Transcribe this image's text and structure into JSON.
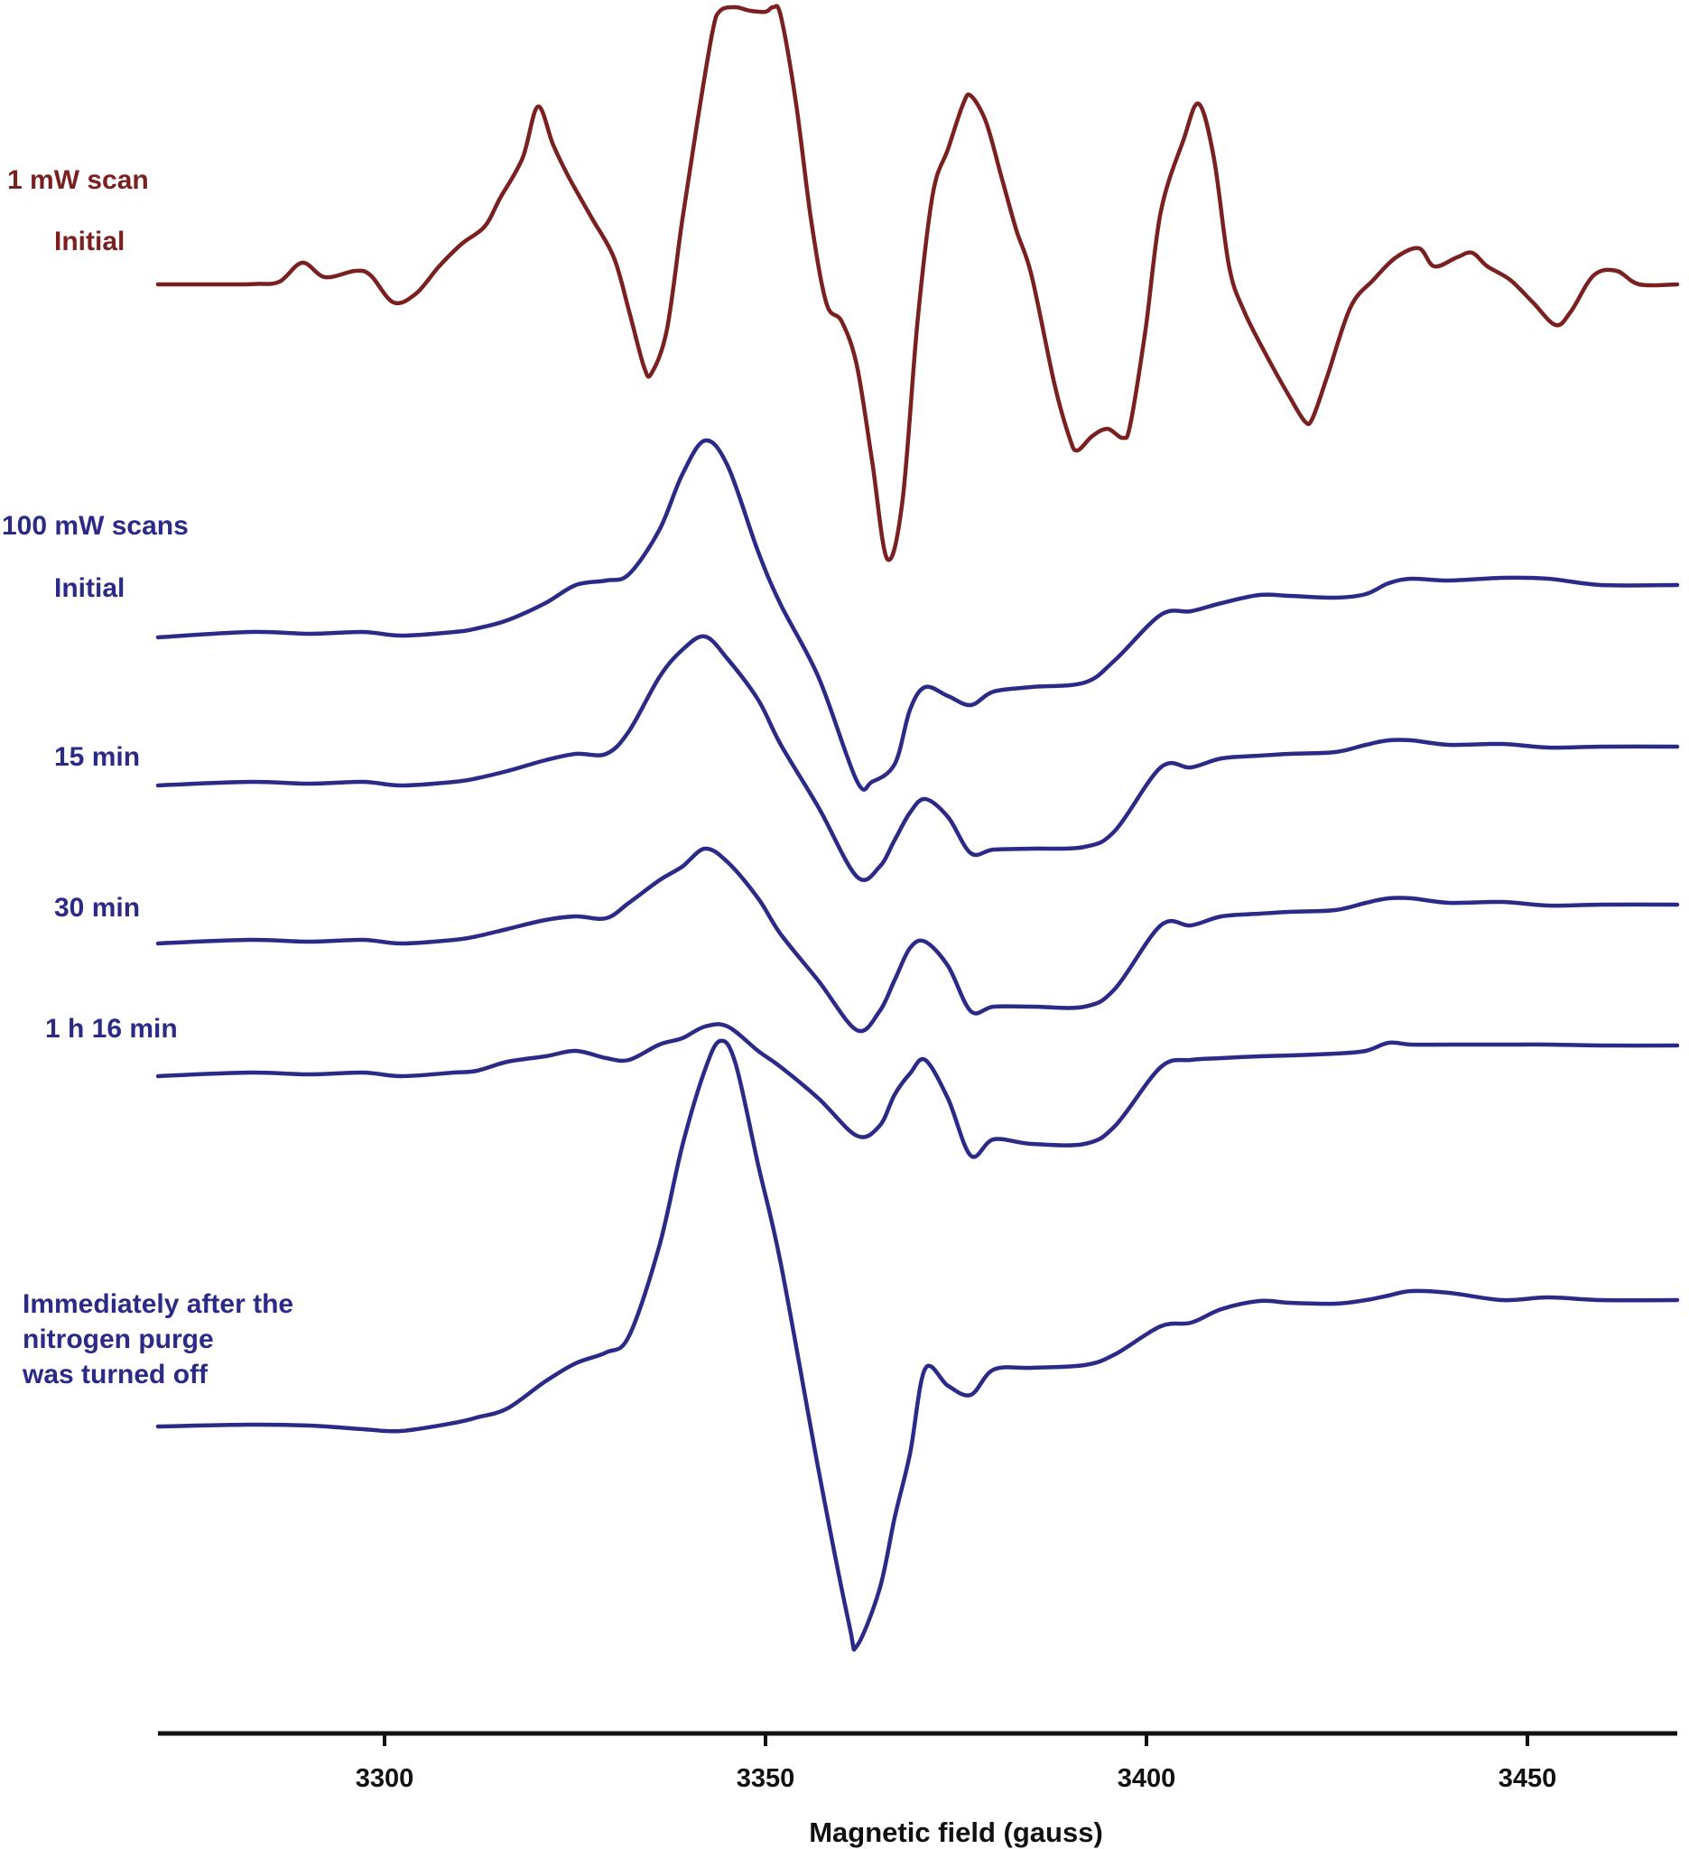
{
  "chart_data": {
    "type": "line",
    "title": "",
    "xlabel": "Magnetic field (gauss)",
    "ylabel": "",
    "xlim": [
      3270,
      3470
    ],
    "xticks": [
      3300,
      3350,
      3400,
      3450
    ],
    "grid": false,
    "colors": {
      "scan_1mw": "#7a2020",
      "scan_100mw": "#2b2a86",
      "axis": "#111111"
    },
    "series": [
      {
        "name": "1 mW scan Initial",
        "group_label": "1 mW scan",
        "label": "Initial",
        "color": "#7a2020",
        "points": [
          [
            3270,
            0
          ],
          [
            3280,
            0
          ],
          [
            3283,
            -0.5
          ],
          [
            3286,
            -3
          ],
          [
            3289,
            -24
          ],
          [
            3292,
            -8
          ],
          [
            3296,
            -15
          ],
          [
            3298,
            -10
          ],
          [
            3301,
            20
          ],
          [
            3304,
            10
          ],
          [
            3307,
            -20
          ],
          [
            3310,
            -45
          ],
          [
            3313,
            -64
          ],
          [
            3315,
            -95
          ],
          [
            3318,
            -140
          ],
          [
            3320,
            -197
          ],
          [
            3322,
            -155
          ],
          [
            3324,
            -120
          ],
          [
            3327,
            -75
          ],
          [
            3330,
            -30
          ],
          [
            3332,
            29
          ],
          [
            3334,
            92
          ],
          [
            3335,
            98
          ],
          [
            3337,
            50
          ],
          [
            3339,
            -70
          ],
          [
            3341,
            -180
          ],
          [
            3343,
            -280
          ],
          [
            3344,
            -303
          ],
          [
            3346,
            -307
          ],
          [
            3348,
            -303
          ],
          [
            3350,
            -302
          ],
          [
            3351,
            -307
          ],
          [
            3352,
            -297
          ],
          [
            3354,
            -200
          ],
          [
            3356,
            -70
          ],
          [
            3358,
            21
          ],
          [
            3360,
            41
          ],
          [
            3362,
            90
          ],
          [
            3364,
            195
          ],
          [
            3366,
            304
          ],
          [
            3368,
            240
          ],
          [
            3370,
            40
          ],
          [
            3372,
            -100
          ],
          [
            3374,
            -150
          ],
          [
            3376,
            -200
          ],
          [
            3377,
            -209
          ],
          [
            3379,
            -180
          ],
          [
            3381,
            -120
          ],
          [
            3383,
            -60
          ],
          [
            3385,
            -10
          ],
          [
            3388,
            110
          ],
          [
            3390,
            170
          ],
          [
            3391,
            184
          ],
          [
            3393,
            168
          ],
          [
            3395,
            160
          ],
          [
            3397,
            170
          ],
          [
            3398,
            155
          ],
          [
            3400,
            50
          ],
          [
            3402,
            -80
          ],
          [
            3405,
            -160
          ],
          [
            3407,
            -200
          ],
          [
            3409,
            -140
          ],
          [
            3411,
            -20
          ],
          [
            3413,
            30
          ],
          [
            3416,
            80
          ],
          [
            3419,
            125
          ],
          [
            3421,
            152
          ],
          [
            3422,
            148
          ],
          [
            3424,
            100
          ],
          [
            3427,
            25
          ],
          [
            3430,
            -5
          ],
          [
            3433,
            -30
          ],
          [
            3436,
            -40
          ],
          [
            3438,
            -20
          ],
          [
            3441,
            -30
          ],
          [
            3443,
            -35
          ],
          [
            3445,
            -20
          ],
          [
            3448,
            -5
          ],
          [
            3451,
            20
          ],
          [
            3454,
            45
          ],
          [
            3456,
            30
          ],
          [
            3459,
            -10
          ],
          [
            3462,
            -15
          ],
          [
            3465,
            0
          ],
          [
            3470,
            0
          ]
        ]
      },
      {
        "name": "100 mW scans Initial",
        "group_label": "100 mW scans",
        "label": "Initial",
        "color": "#2b2a86",
        "points": [
          [
            3270,
            0
          ],
          [
            3282,
            -6
          ],
          [
            3290,
            -4
          ],
          [
            3297,
            -6
          ],
          [
            3302,
            -2
          ],
          [
            3309,
            -6
          ],
          [
            3312,
            -10
          ],
          [
            3316,
            -19
          ],
          [
            3321,
            -38
          ],
          [
            3325,
            -58
          ],
          [
            3329,
            -63
          ],
          [
            3332,
            -70
          ],
          [
            3336,
            -119
          ],
          [
            3339,
            -180
          ],
          [
            3342,
            -218
          ],
          [
            3345,
            -190
          ],
          [
            3349,
            -95
          ],
          [
            3352,
            -36
          ],
          [
            3357,
            45
          ],
          [
            3362,
            159
          ],
          [
            3364,
            160
          ],
          [
            3367,
            140
          ],
          [
            3369,
            80
          ],
          [
            3371,
            55
          ],
          [
            3374,
            65
          ],
          [
            3377,
            75
          ],
          [
            3380,
            60
          ],
          [
            3385,
            55
          ],
          [
            3392,
            50
          ],
          [
            3396,
            25
          ],
          [
            3402,
            -25
          ],
          [
            3406,
            -29
          ],
          [
            3410,
            -38
          ],
          [
            3415,
            -47
          ],
          [
            3419,
            -46
          ],
          [
            3425,
            -44
          ],
          [
            3429,
            -48
          ],
          [
            3432,
            -60
          ],
          [
            3435,
            -65
          ],
          [
            3440,
            -63
          ],
          [
            3447,
            -66
          ],
          [
            3453,
            -65
          ],
          [
            3460,
            -58
          ],
          [
            3470,
            -58
          ]
        ]
      },
      {
        "name": "100 mW scans 15 min",
        "label": "15 min",
        "color": "#2b2a86",
        "points": [
          [
            3270,
            0
          ],
          [
            3282,
            -4
          ],
          [
            3290,
            -2
          ],
          [
            3297,
            -4
          ],
          [
            3302,
            0
          ],
          [
            3309,
            -4
          ],
          [
            3312,
            -8
          ],
          [
            3316,
            -16
          ],
          [
            3321,
            -28
          ],
          [
            3325,
            -35
          ],
          [
            3329,
            -35
          ],
          [
            3332,
            -60
          ],
          [
            3336,
            -120
          ],
          [
            3339,
            -150
          ],
          [
            3342,
            -165
          ],
          [
            3345,
            -140
          ],
          [
            3349,
            -95
          ],
          [
            3352,
            -45
          ],
          [
            3357,
            25
          ],
          [
            3362,
            101
          ],
          [
            3365,
            90
          ],
          [
            3367,
            60
          ],
          [
            3369,
            30
          ],
          [
            3371,
            15
          ],
          [
            3374,
            35
          ],
          [
            3377,
            75
          ],
          [
            3380,
            71
          ],
          [
            3385,
            70
          ],
          [
            3392,
            68
          ],
          [
            3396,
            50
          ],
          [
            3402,
            -20
          ],
          [
            3406,
            -20
          ],
          [
            3410,
            -30
          ],
          [
            3415,
            -33
          ],
          [
            3419,
            -35
          ],
          [
            3425,
            -37
          ],
          [
            3429,
            -45
          ],
          [
            3432,
            -50
          ],
          [
            3435,
            -50
          ],
          [
            3440,
            -45
          ],
          [
            3447,
            -46
          ],
          [
            3453,
            -42
          ],
          [
            3460,
            -43
          ],
          [
            3470,
            -43
          ]
        ]
      },
      {
        "name": "100 mW scans 30 min",
        "label": "30 min",
        "color": "#2b2a86",
        "points": [
          [
            3270,
            0
          ],
          [
            3282,
            -4
          ],
          [
            3290,
            -2
          ],
          [
            3297,
            -4
          ],
          [
            3302,
            0
          ],
          [
            3309,
            -4
          ],
          [
            3312,
            -8
          ],
          [
            3316,
            -16
          ],
          [
            3321,
            -26
          ],
          [
            3325,
            -30
          ],
          [
            3329,
            -28
          ],
          [
            3332,
            -45
          ],
          [
            3336,
            -70
          ],
          [
            3339,
            -85
          ],
          [
            3342,
            -105
          ],
          [
            3345,
            -90
          ],
          [
            3349,
            -50
          ],
          [
            3352,
            -10
          ],
          [
            3357,
            42
          ],
          [
            3362,
            96
          ],
          [
            3365,
            75
          ],
          [
            3367,
            40
          ],
          [
            3369,
            5
          ],
          [
            3371,
            -2
          ],
          [
            3374,
            25
          ],
          [
            3377,
            75
          ],
          [
            3380,
            70
          ],
          [
            3385,
            70
          ],
          [
            3392,
            70
          ],
          [
            3396,
            50
          ],
          [
            3402,
            -20
          ],
          [
            3406,
            -20
          ],
          [
            3410,
            -30
          ],
          [
            3415,
            -33
          ],
          [
            3419,
            -35
          ],
          [
            3425,
            -37
          ],
          [
            3429,
            -45
          ],
          [
            3432,
            -50
          ],
          [
            3435,
            -50
          ],
          [
            3440,
            -45
          ],
          [
            3447,
            -46
          ],
          [
            3453,
            -42
          ],
          [
            3460,
            -43
          ],
          [
            3470,
            -43
          ]
        ]
      },
      {
        "name": "100 mW scans 1 h 16 min",
        "label": "1 h 16 min",
        "color": "#2b2a86",
        "points": [
          [
            3270,
            0
          ],
          [
            3282,
            -4
          ],
          [
            3290,
            -2
          ],
          [
            3297,
            -4
          ],
          [
            3302,
            0
          ],
          [
            3309,
            -4
          ],
          [
            3312,
            -6
          ],
          [
            3316,
            -16
          ],
          [
            3321,
            -22
          ],
          [
            3325,
            -28
          ],
          [
            3329,
            -20
          ],
          [
            3332,
            -18
          ],
          [
            3336,
            -35
          ],
          [
            3339,
            -42
          ],
          [
            3342,
            -55
          ],
          [
            3345,
            -55
          ],
          [
            3349,
            -28
          ],
          [
            3352,
            -10
          ],
          [
            3357,
            25
          ],
          [
            3362,
            66
          ],
          [
            3365,
            55
          ],
          [
            3367,
            20
          ],
          [
            3369,
            -3
          ],
          [
            3371,
            -18
          ],
          [
            3374,
            25
          ],
          [
            3377,
            88
          ],
          [
            3380,
            70
          ],
          [
            3385,
            75
          ],
          [
            3392,
            75
          ],
          [
            3396,
            55
          ],
          [
            3402,
            -10
          ],
          [
            3406,
            -18
          ],
          [
            3410,
            -20
          ],
          [
            3415,
            -22
          ],
          [
            3419,
            -23
          ],
          [
            3425,
            -25
          ],
          [
            3429,
            -28
          ],
          [
            3432,
            -37
          ],
          [
            3435,
            -35
          ],
          [
            3440,
            -35
          ],
          [
            3447,
            -35
          ],
          [
            3453,
            -35
          ],
          [
            3460,
            -34
          ],
          [
            3470,
            -34
          ]
        ]
      },
      {
        "name": "Immediately after the nitrogen purge was turned off",
        "label": "Immediately after the\nnitrogen purge\nwas turned off",
        "color": "#2b2a86",
        "points": [
          [
            3270,
            0
          ],
          [
            3282,
            -2
          ],
          [
            3290,
            -1
          ],
          [
            3297,
            3
          ],
          [
            3302,
            5
          ],
          [
            3309,
            -4
          ],
          [
            3312,
            -10
          ],
          [
            3316,
            -20
          ],
          [
            3321,
            -50
          ],
          [
            3325,
            -70
          ],
          [
            3329,
            -82
          ],
          [
            3332,
            -100
          ],
          [
            3336,
            -200
          ],
          [
            3339,
            -310
          ],
          [
            3342,
            -395
          ],
          [
            3344,
            -427
          ],
          [
            3346,
            -403
          ],
          [
            3349,
            -290
          ],
          [
            3352,
            -180
          ],
          [
            3357,
            50
          ],
          [
            3361,
            220
          ],
          [
            3362,
            243
          ],
          [
            3365,
            180
          ],
          [
            3367,
            100
          ],
          [
            3369,
            30
          ],
          [
            3371,
            -64
          ],
          [
            3374,
            -45
          ],
          [
            3377,
            -35
          ],
          [
            3380,
            -63
          ],
          [
            3385,
            -65
          ],
          [
            3392,
            -68
          ],
          [
            3396,
            -80
          ],
          [
            3402,
            -111
          ],
          [
            3406,
            -115
          ],
          [
            3410,
            -130
          ],
          [
            3415,
            -139
          ],
          [
            3419,
            -137
          ],
          [
            3425,
            -136
          ],
          [
            3429,
            -140
          ],
          [
            3432,
            -145
          ],
          [
            3435,
            -150
          ],
          [
            3440,
            -148
          ],
          [
            3447,
            -140
          ],
          [
            3453,
            -143
          ],
          [
            3460,
            -140
          ],
          [
            3470,
            -140
          ]
        ]
      }
    ]
  }
}
